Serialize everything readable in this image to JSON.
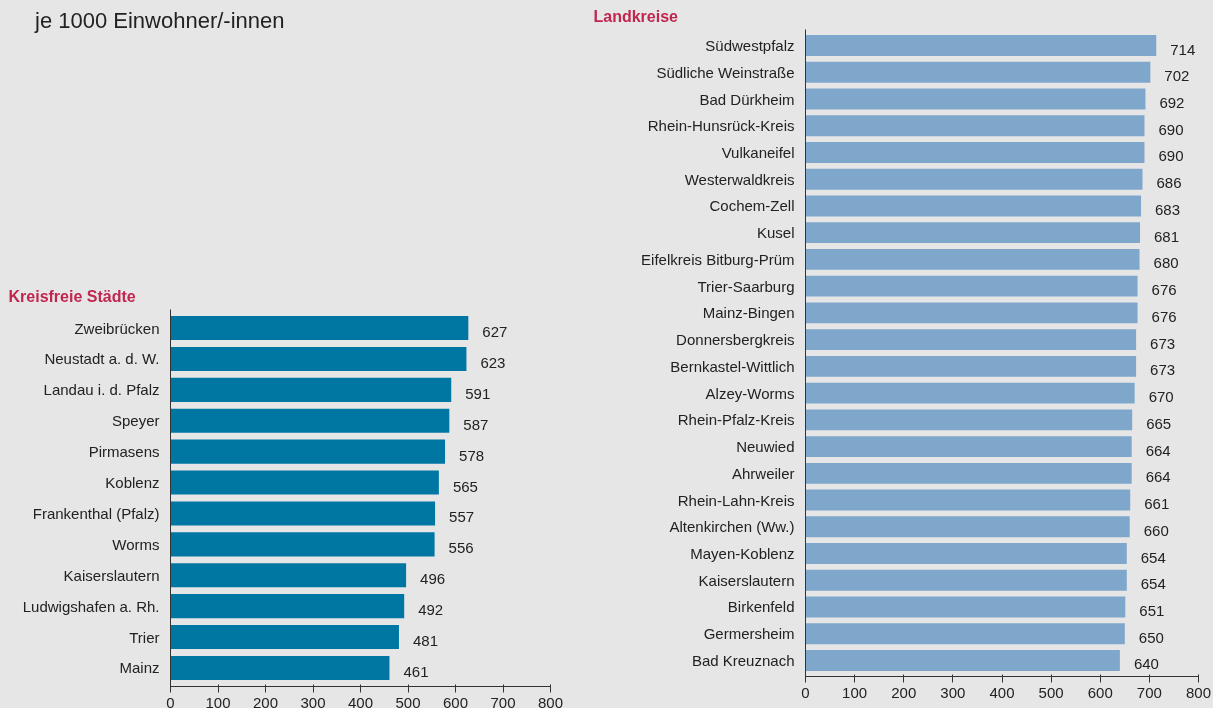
{
  "chart_data": [
    {
      "type": "bar",
      "orientation": "horizontal",
      "title": "Kreisfreie Städte",
      "annotations": [
        "je 1000 Einwohner/-innen"
      ],
      "categories": [
        "Zweibrücken",
        "Neustadt a. d. W.",
        "Landau i. d. Pfalz",
        "Speyer",
        "Pirmasens",
        "Koblenz",
        "Frankenthal (Pfalz)",
        "Worms",
        "Kaiserslautern",
        "Ludwigshafen a. Rh.",
        "Trier",
        "Mainz"
      ],
      "values": [
        627,
        623,
        591,
        587,
        578,
        565,
        557,
        556,
        496,
        492,
        481,
        461
      ],
      "color": "#0077a3",
      "xlim": [
        0,
        800
      ],
      "xticks": [
        0,
        100,
        200,
        300,
        400,
        500,
        600,
        700,
        800
      ],
      "data_labels": true
    },
    {
      "type": "bar",
      "orientation": "horizontal",
      "title": "Landkreise",
      "categories": [
        "Südwestpfalz",
        "Südliche Weinstraße",
        "Bad Dürkheim",
        "Rhein-Hunsrück-Kreis",
        "Vulkaneifel",
        "Westerwaldkreis",
        "Cochem-Zell",
        "Kusel",
        "Eifelkreis Bitburg-Prüm",
        "Trier-Saarburg",
        "Mainz-Bingen",
        "Donnersbergkreis",
        "Bernkastel-Wittlich",
        "Alzey-Worms",
        "Rhein-Pfalz-Kreis",
        "Neuwied",
        "Ahrweiler",
        "Rhein-Lahn-Kreis",
        "Altenkirchen (Ww.)",
        "Mayen-Koblenz",
        "Kaiserslautern",
        "Birkenfeld",
        "Germersheim",
        "Bad Kreuznach"
      ],
      "values": [
        714,
        702,
        692,
        690,
        690,
        686,
        683,
        681,
        680,
        676,
        676,
        673,
        673,
        670,
        665,
        664,
        664,
        661,
        660,
        654,
        654,
        651,
        650,
        640
      ],
      "color": "#7fa7cc",
      "xlim": [
        0,
        800
      ],
      "xticks": [
        0,
        100,
        200,
        300,
        400,
        500,
        600,
        700,
        800
      ],
      "data_labels": true
    }
  ]
}
